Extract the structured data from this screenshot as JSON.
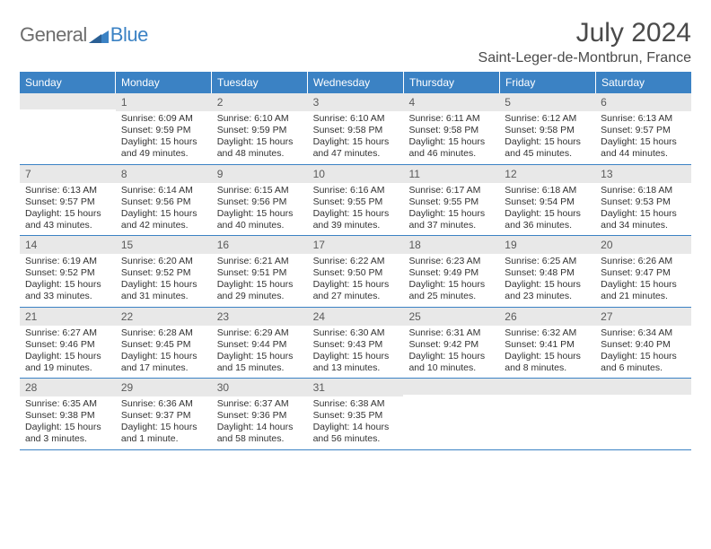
{
  "logo": {
    "general": "General",
    "blue": "Blue"
  },
  "title": "July 2024",
  "location": "Saint-Leger-de-Montbrun, France",
  "colors": {
    "header_bg": "#3b82c4",
    "header_fg": "#ffffff",
    "daynum_bg": "#e8e8e8",
    "daynum_fg": "#5a5a5a",
    "text": "#323232",
    "rule": "#3b82c4",
    "logo_gray": "#6d6d6d",
    "logo_blue": "#3b82c4"
  },
  "typography": {
    "title_fontsize": 30,
    "location_fontsize": 16,
    "dayhead_fontsize": 12,
    "daynum_fontsize": 12,
    "body_fontsize": 10.5
  },
  "day_headers": [
    "Sunday",
    "Monday",
    "Tuesday",
    "Wednesday",
    "Thursday",
    "Friday",
    "Saturday"
  ],
  "weeks": [
    [
      {
        "day": "",
        "sunrise": "",
        "sunset": "",
        "daylight": ""
      },
      {
        "day": "1",
        "sunrise": "Sunrise: 6:09 AM",
        "sunset": "Sunset: 9:59 PM",
        "daylight": "Daylight: 15 hours and 49 minutes."
      },
      {
        "day": "2",
        "sunrise": "Sunrise: 6:10 AM",
        "sunset": "Sunset: 9:59 PM",
        "daylight": "Daylight: 15 hours and 48 minutes."
      },
      {
        "day": "3",
        "sunrise": "Sunrise: 6:10 AM",
        "sunset": "Sunset: 9:58 PM",
        "daylight": "Daylight: 15 hours and 47 minutes."
      },
      {
        "day": "4",
        "sunrise": "Sunrise: 6:11 AM",
        "sunset": "Sunset: 9:58 PM",
        "daylight": "Daylight: 15 hours and 46 minutes."
      },
      {
        "day": "5",
        "sunrise": "Sunrise: 6:12 AM",
        "sunset": "Sunset: 9:58 PM",
        "daylight": "Daylight: 15 hours and 45 minutes."
      },
      {
        "day": "6",
        "sunrise": "Sunrise: 6:13 AM",
        "sunset": "Sunset: 9:57 PM",
        "daylight": "Daylight: 15 hours and 44 minutes."
      }
    ],
    [
      {
        "day": "7",
        "sunrise": "Sunrise: 6:13 AM",
        "sunset": "Sunset: 9:57 PM",
        "daylight": "Daylight: 15 hours and 43 minutes."
      },
      {
        "day": "8",
        "sunrise": "Sunrise: 6:14 AM",
        "sunset": "Sunset: 9:56 PM",
        "daylight": "Daylight: 15 hours and 42 minutes."
      },
      {
        "day": "9",
        "sunrise": "Sunrise: 6:15 AM",
        "sunset": "Sunset: 9:56 PM",
        "daylight": "Daylight: 15 hours and 40 minutes."
      },
      {
        "day": "10",
        "sunrise": "Sunrise: 6:16 AM",
        "sunset": "Sunset: 9:55 PM",
        "daylight": "Daylight: 15 hours and 39 minutes."
      },
      {
        "day": "11",
        "sunrise": "Sunrise: 6:17 AM",
        "sunset": "Sunset: 9:55 PM",
        "daylight": "Daylight: 15 hours and 37 minutes."
      },
      {
        "day": "12",
        "sunrise": "Sunrise: 6:18 AM",
        "sunset": "Sunset: 9:54 PM",
        "daylight": "Daylight: 15 hours and 36 minutes."
      },
      {
        "day": "13",
        "sunrise": "Sunrise: 6:18 AM",
        "sunset": "Sunset: 9:53 PM",
        "daylight": "Daylight: 15 hours and 34 minutes."
      }
    ],
    [
      {
        "day": "14",
        "sunrise": "Sunrise: 6:19 AM",
        "sunset": "Sunset: 9:52 PM",
        "daylight": "Daylight: 15 hours and 33 minutes."
      },
      {
        "day": "15",
        "sunrise": "Sunrise: 6:20 AM",
        "sunset": "Sunset: 9:52 PM",
        "daylight": "Daylight: 15 hours and 31 minutes."
      },
      {
        "day": "16",
        "sunrise": "Sunrise: 6:21 AM",
        "sunset": "Sunset: 9:51 PM",
        "daylight": "Daylight: 15 hours and 29 minutes."
      },
      {
        "day": "17",
        "sunrise": "Sunrise: 6:22 AM",
        "sunset": "Sunset: 9:50 PM",
        "daylight": "Daylight: 15 hours and 27 minutes."
      },
      {
        "day": "18",
        "sunrise": "Sunrise: 6:23 AM",
        "sunset": "Sunset: 9:49 PM",
        "daylight": "Daylight: 15 hours and 25 minutes."
      },
      {
        "day": "19",
        "sunrise": "Sunrise: 6:25 AM",
        "sunset": "Sunset: 9:48 PM",
        "daylight": "Daylight: 15 hours and 23 minutes."
      },
      {
        "day": "20",
        "sunrise": "Sunrise: 6:26 AM",
        "sunset": "Sunset: 9:47 PM",
        "daylight": "Daylight: 15 hours and 21 minutes."
      }
    ],
    [
      {
        "day": "21",
        "sunrise": "Sunrise: 6:27 AM",
        "sunset": "Sunset: 9:46 PM",
        "daylight": "Daylight: 15 hours and 19 minutes."
      },
      {
        "day": "22",
        "sunrise": "Sunrise: 6:28 AM",
        "sunset": "Sunset: 9:45 PM",
        "daylight": "Daylight: 15 hours and 17 minutes."
      },
      {
        "day": "23",
        "sunrise": "Sunrise: 6:29 AM",
        "sunset": "Sunset: 9:44 PM",
        "daylight": "Daylight: 15 hours and 15 minutes."
      },
      {
        "day": "24",
        "sunrise": "Sunrise: 6:30 AM",
        "sunset": "Sunset: 9:43 PM",
        "daylight": "Daylight: 15 hours and 13 minutes."
      },
      {
        "day": "25",
        "sunrise": "Sunrise: 6:31 AM",
        "sunset": "Sunset: 9:42 PM",
        "daylight": "Daylight: 15 hours and 10 minutes."
      },
      {
        "day": "26",
        "sunrise": "Sunrise: 6:32 AM",
        "sunset": "Sunset: 9:41 PM",
        "daylight": "Daylight: 15 hours and 8 minutes."
      },
      {
        "day": "27",
        "sunrise": "Sunrise: 6:34 AM",
        "sunset": "Sunset: 9:40 PM",
        "daylight": "Daylight: 15 hours and 6 minutes."
      }
    ],
    [
      {
        "day": "28",
        "sunrise": "Sunrise: 6:35 AM",
        "sunset": "Sunset: 9:38 PM",
        "daylight": "Daylight: 15 hours and 3 minutes."
      },
      {
        "day": "29",
        "sunrise": "Sunrise: 6:36 AM",
        "sunset": "Sunset: 9:37 PM",
        "daylight": "Daylight: 15 hours and 1 minute."
      },
      {
        "day": "30",
        "sunrise": "Sunrise: 6:37 AM",
        "sunset": "Sunset: 9:36 PM",
        "daylight": "Daylight: 14 hours and 58 minutes."
      },
      {
        "day": "31",
        "sunrise": "Sunrise: 6:38 AM",
        "sunset": "Sunset: 9:35 PM",
        "daylight": "Daylight: 14 hours and 56 minutes."
      },
      {
        "day": "",
        "sunrise": "",
        "sunset": "",
        "daylight": ""
      },
      {
        "day": "",
        "sunrise": "",
        "sunset": "",
        "daylight": ""
      },
      {
        "day": "",
        "sunrise": "",
        "sunset": "",
        "daylight": ""
      }
    ]
  ]
}
